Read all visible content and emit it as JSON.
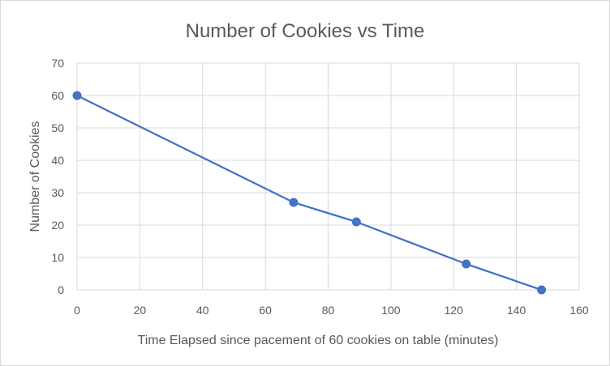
{
  "chart_data": {
    "type": "scatter",
    "title": "Number of Cookies vs Time",
    "xlabel": "Time Elapsed since pacement of 60 cookies on table (minutes)",
    "ylabel": "Number of Cookies",
    "xlim": [
      0,
      160
    ],
    "ylim": [
      0,
      70
    ],
    "xticks": [
      "0",
      "20",
      "40",
      "60",
      "80",
      "100",
      "120",
      "140",
      "160"
    ],
    "yticks": [
      "0",
      "10",
      "20",
      "30",
      "40",
      "50",
      "60",
      "70"
    ],
    "grid": true,
    "legend": "none",
    "series": [
      {
        "color": "#4472c4",
        "lines": true,
        "markers": true,
        "points": [
          {
            "x": 0,
            "y": 60
          },
          {
            "x": 69,
            "y": 27
          },
          {
            "x": 89,
            "y": 21
          },
          {
            "x": 124,
            "y": 8
          },
          {
            "x": 148,
            "y": 0
          }
        ]
      }
    ],
    "colors": {
      "grid": "#d9d9d9",
      "text": "#595959",
      "series": "#4472c4"
    }
  }
}
